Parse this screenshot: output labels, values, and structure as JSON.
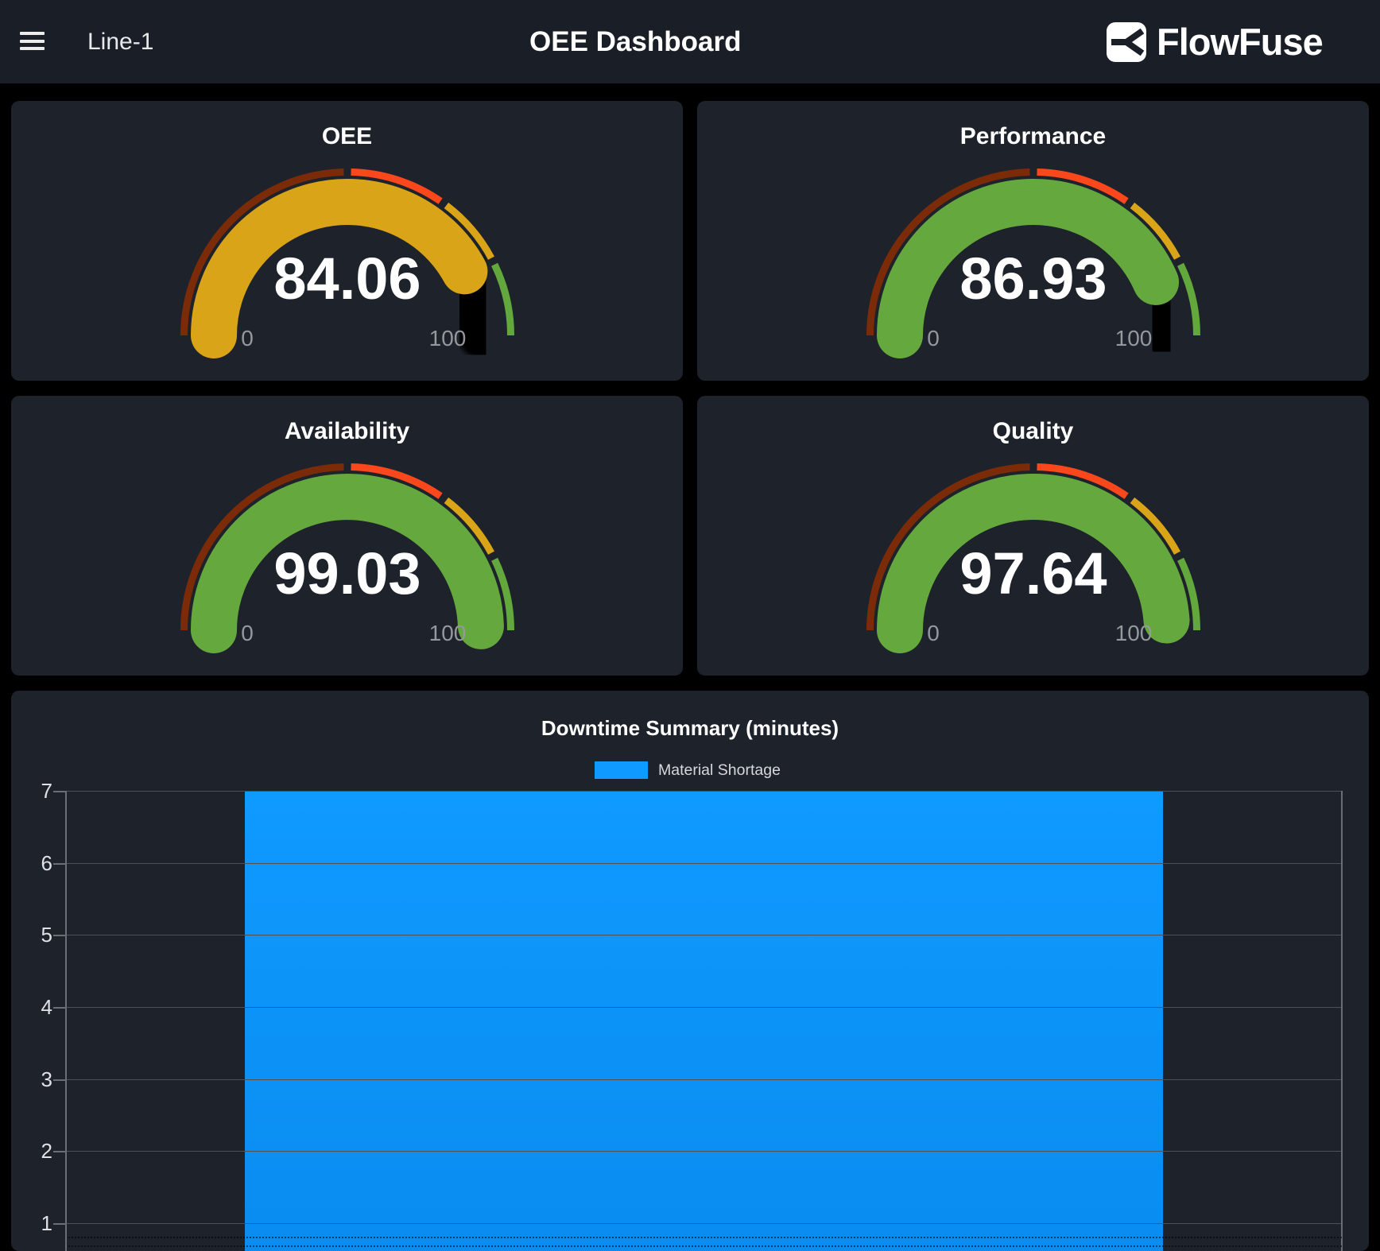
{
  "topbar": {
    "line_label": "Line-1",
    "title": "OEE Dashboard",
    "brand": "FlowFuse"
  },
  "gauge_scale": {
    "min": 0,
    "max": 100,
    "min_label": "0",
    "max_label": "100",
    "segments": [
      {
        "from": 0,
        "to": 50,
        "color": "#7c2b08"
      },
      {
        "from": 50,
        "to": 70,
        "color": "#fb471c"
      },
      {
        "from": 70,
        "to": 85,
        "color": "#d9a417"
      },
      {
        "from": 85,
        "to": 100,
        "color": "#63a83c"
      }
    ]
  },
  "gauges": [
    {
      "title": "OEE",
      "value": "84.06",
      "value_num": 84.06,
      "arc_color": "#d9a417"
    },
    {
      "title": "Performance",
      "value": "86.93",
      "value_num": 86.93,
      "arc_color": "#65a93e"
    },
    {
      "title": "Availability",
      "value": "99.03",
      "value_num": 99.03,
      "arc_color": "#65a93e"
    },
    {
      "title": "Quality",
      "value": "97.64",
      "value_num": 97.64,
      "arc_color": "#65a93e"
    }
  ],
  "chart": {
    "title": "Downtime Summary (minutes)",
    "legend": [
      {
        "label": "Material Shortage",
        "color": "#0f9aff"
      }
    ],
    "y_ticks": [
      "7",
      "6",
      "5",
      "4",
      "3",
      "2",
      "1"
    ]
  },
  "chart_data": {
    "type": "bar",
    "title": "Downtime Summary (minutes)",
    "categories": [
      "Material Shortage"
    ],
    "values": [
      7
    ],
    "series": [
      {
        "name": "Material Shortage",
        "values": [
          7
        ]
      }
    ],
    "xlabel": "",
    "ylabel": "",
    "y_axis_max": 7,
    "y_ticks_visible": [
      7,
      6,
      5,
      4,
      3,
      2,
      1
    ],
    "grid": true,
    "legend_position": "top",
    "bar_color": "#0f9aff"
  }
}
